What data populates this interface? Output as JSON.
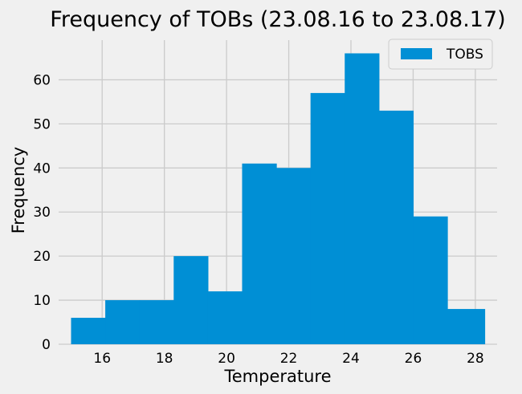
{
  "chart_data": {
    "type": "histogram",
    "title": "Frequency of TOBs (23.08.16 to 23.08.17)",
    "xlabel": "Temperature",
    "ylabel": "Frequency",
    "xlim": [
      14.6,
      28.7
    ],
    "ylim": [
      0,
      69
    ],
    "xticks": [
      16,
      18,
      20,
      22,
      24,
      26,
      28
    ],
    "yticks": [
      0,
      10,
      20,
      30,
      40,
      50,
      60
    ],
    "grid": true,
    "legend": {
      "placement": "top-right",
      "entries": [
        "TOBS"
      ]
    },
    "series": [
      {
        "name": "TOBS",
        "color": "#008fd5",
        "bins": [
          {
            "x0": 15.0,
            "x1": 16.1,
            "value": 6
          },
          {
            "x0": 16.1,
            "x1": 17.2,
            "value": 10
          },
          {
            "x0": 17.2,
            "x1": 18.3,
            "value": 10
          },
          {
            "x0": 18.3,
            "x1": 19.4,
            "value": 20
          },
          {
            "x0": 19.4,
            "x1": 20.5,
            "value": 12
          },
          {
            "x0": 20.5,
            "x1": 21.6,
            "value": 41
          },
          {
            "x0": 21.6,
            "x1": 22.7,
            "value": 40
          },
          {
            "x0": 22.7,
            "x1": 23.8,
            "value": 57
          },
          {
            "x0": 23.8,
            "x1": 24.9,
            "value": 66
          },
          {
            "x0": 24.9,
            "x1": 26.0,
            "value": 53
          },
          {
            "x0": 26.0,
            "x1": 27.1,
            "value": 29
          },
          {
            "x0": 27.1,
            "x1": 28.3,
            "value": 8
          }
        ]
      }
    ]
  }
}
